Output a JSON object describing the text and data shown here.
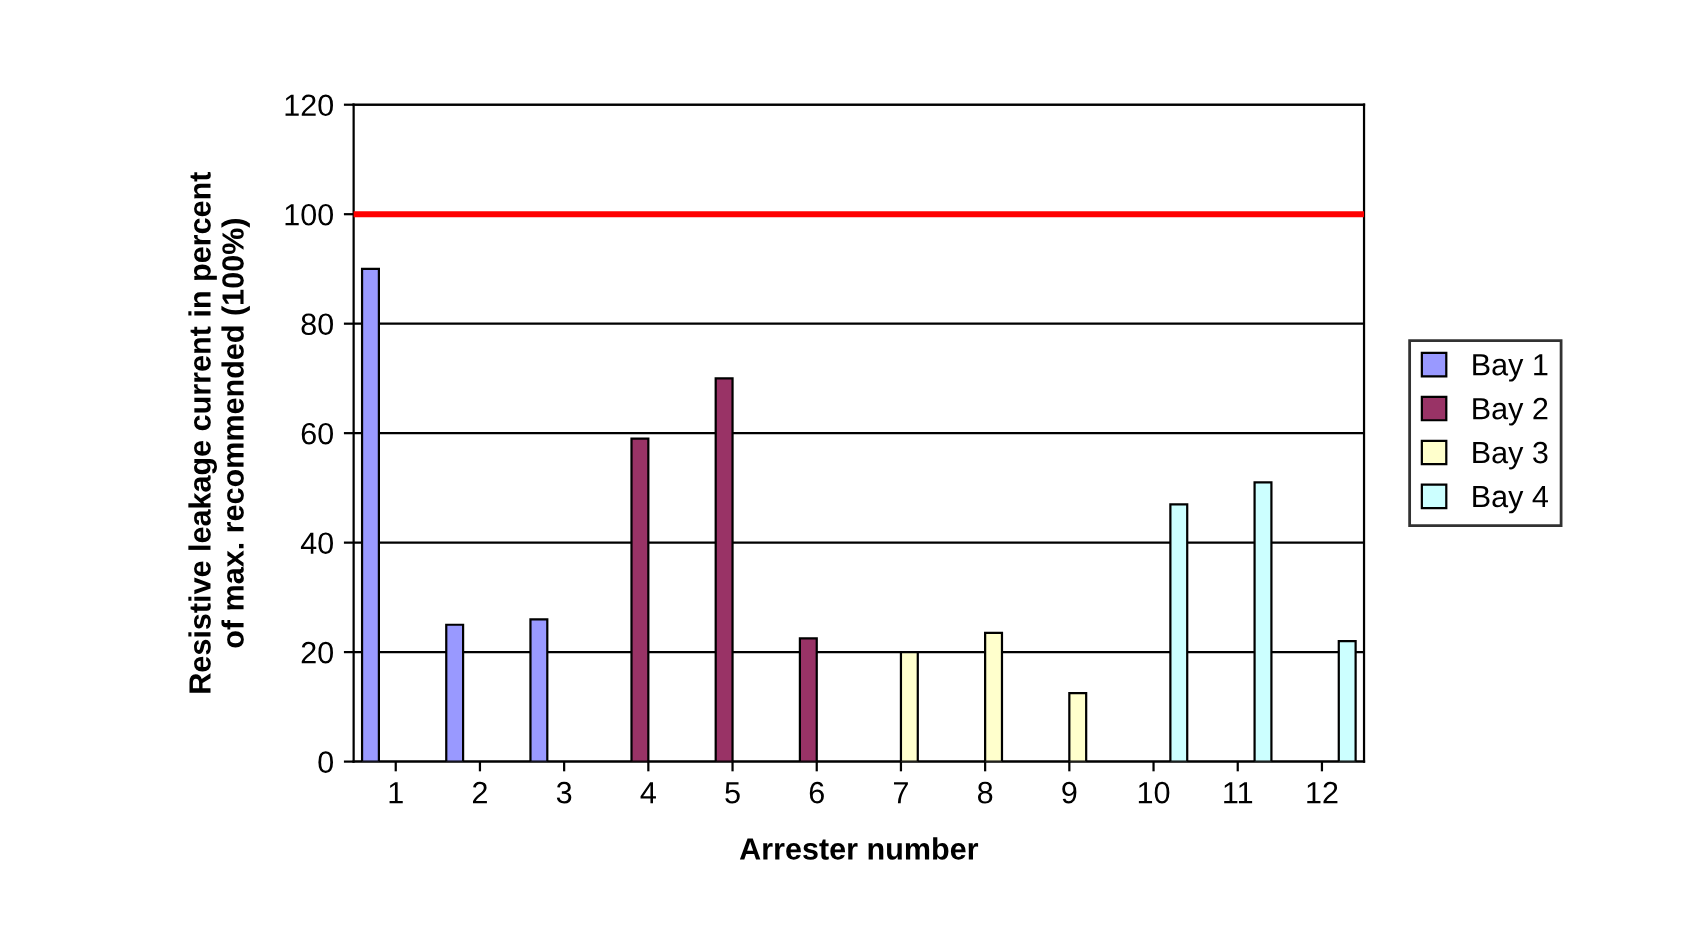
{
  "chart_data": {
    "type": "bar",
    "xlabel": "Arrester number",
    "ylabel": "Resistive leakage current in percent\nof max. recommended (100%)",
    "categories": [
      "1",
      "2",
      "3",
      "4",
      "5",
      "6",
      "7",
      "8",
      "9",
      "10",
      "11",
      "12"
    ],
    "series": [
      {
        "name": "Bay 1",
        "color": "#9999ff",
        "values": [
          90,
          25,
          26,
          null,
          null,
          null,
          null,
          null,
          null,
          null,
          null,
          null
        ]
      },
      {
        "name": "Bay 2",
        "color": "#993366",
        "values": [
          null,
          null,
          null,
          59,
          70,
          22.5,
          null,
          null,
          null,
          null,
          null,
          null
        ]
      },
      {
        "name": "Bay 3",
        "color": "#ffffcc",
        "values": [
          null,
          null,
          null,
          null,
          null,
          null,
          20,
          23.5,
          12.5,
          null,
          null,
          null
        ]
      },
      {
        "name": "Bay 4",
        "color": "#ccffff",
        "values": [
          null,
          null,
          null,
          null,
          null,
          null,
          null,
          null,
          null,
          47,
          51,
          22
        ]
      }
    ],
    "ylim": [
      0,
      120
    ],
    "yticks": [
      0,
      20,
      40,
      60,
      80,
      100,
      120
    ],
    "grid": "y",
    "legend": "right",
    "ref_lines": [
      {
        "axis": "y",
        "value": 100,
        "color": "#ff0000"
      }
    ]
  }
}
